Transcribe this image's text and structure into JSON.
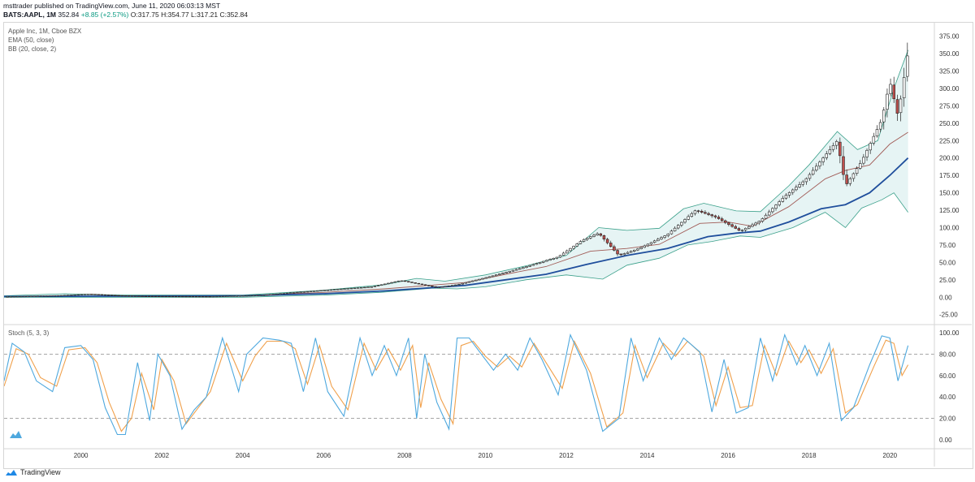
{
  "header": {
    "publisher_line": "msttrader published on TradingView.com, June 11, 2020 06:03:13 MST",
    "symbol": "BATS:AAPL, 1M",
    "last": "352.84",
    "change": "+8.85 (+2.57%)",
    "open": "O:317.75",
    "high": "H:354.77",
    "low": "L:317.21",
    "close": "C:352.84"
  },
  "legend": {
    "title": "Apple Inc, 1M, Cboe BZX",
    "ema": "EMA (50, close)",
    "bb": "BB (20, close, 2)",
    "stoch": "Stoch (5, 3, 3)"
  },
  "footer": {
    "brand": "TradingView"
  },
  "colors": {
    "up_body": "#ffffff",
    "down_body": "#c0504d",
    "candle_border": "#222222",
    "ema": "#1f4e9c",
    "bb_mid": "#a05a55",
    "bb_band": "#3aa08a",
    "bb_fill": "#e6f4f4",
    "stoch_k": "#4ea8de",
    "stoch_d": "#f0a04b",
    "grid_dash": "#888888"
  },
  "chart_data": [
    {
      "type": "candlestick",
      "title": "Apple Inc, 1M, Cboe BZX",
      "xlim": [
        1998.1,
        2021.1
      ],
      "ylim": [
        -37,
        392
      ],
      "y_ticks": [
        -25,
        0,
        25,
        50,
        75,
        100,
        125,
        150,
        175,
        200,
        225,
        250,
        275,
        300,
        325,
        350,
        375
      ],
      "y_tick_labels": [
        "-25.00",
        "0.00",
        "25.00",
        "50.00",
        "75.00",
        "100.00",
        "125.00",
        "150.00",
        "175.00",
        "200.00",
        "225.00",
        "250.00",
        "275.00",
        "300.00",
        "325.00",
        "350.00",
        "375.00"
      ],
      "x_ticks": [
        2000,
        2002,
        2004,
        2006,
        2008,
        2010,
        2012,
        2014,
        2016,
        2018,
        2020
      ],
      "x_tick_labels": [
        "2000",
        "2002",
        "2004",
        "2006",
        "2008",
        "2010",
        "2012",
        "2014",
        "2016",
        "2018",
        "2020"
      ],
      "price_path": [
        [
          1998.1,
          0.8
        ],
        [
          1999.5,
          2.5
        ],
        [
          2000.2,
          4.5
        ],
        [
          2000.9,
          2.5
        ],
        [
          2001.5,
          1.6
        ],
        [
          2003.2,
          1.1
        ],
        [
          2004.5,
          3
        ],
        [
          2005.3,
          7
        ],
        [
          2006.0,
          10
        ],
        [
          2007.2,
          15
        ],
        [
          2007.9,
          24
        ],
        [
          2008.8,
          14
        ],
        [
          2009.3,
          18
        ],
        [
          2010.0,
          28
        ],
        [
          2010.9,
          42
        ],
        [
          2011.8,
          58
        ],
        [
          2012.4,
          82
        ],
        [
          2012.8,
          92
        ],
        [
          2013.3,
          60
        ],
        [
          2013.8,
          70
        ],
        [
          2014.5,
          90
        ],
        [
          2015.2,
          125
        ],
        [
          2015.7,
          115
        ],
        [
          2016.3,
          95
        ],
        [
          2016.8,
          110
        ],
        [
          2017.4,
          145
        ],
        [
          2017.9,
          168
        ],
        [
          2018.7,
          225
        ],
        [
          2018.9,
          160
        ],
        [
          2019.3,
          195
        ],
        [
          2019.8,
          255
        ],
        [
          2020.0,
          310
        ],
        [
          2020.2,
          260
        ],
        [
          2020.45,
          352.84
        ]
      ],
      "ema50": [
        [
          1998.1,
          1
        ],
        [
          2004,
          2
        ],
        [
          2006,
          5
        ],
        [
          2007.5,
          9
        ],
        [
          2008.5,
          13
        ],
        [
          2009.5,
          17
        ],
        [
          2010.5,
          25
        ],
        [
          2011.5,
          33
        ],
        [
          2012.5,
          47
        ],
        [
          2013.5,
          60
        ],
        [
          2014.5,
          70
        ],
        [
          2015.5,
          87
        ],
        [
          2016.2,
          92
        ],
        [
          2016.8,
          95
        ],
        [
          2017.5,
          108
        ],
        [
          2018.3,
          127
        ],
        [
          2018.9,
          133
        ],
        [
          2019.5,
          150
        ],
        [
          2020.0,
          175
        ],
        [
          2020.45,
          200
        ]
      ],
      "bb_middle": [
        [
          1998.1,
          1
        ],
        [
          2004,
          2
        ],
        [
          2006,
          7
        ],
        [
          2007.5,
          12
        ],
        [
          2008.6,
          17
        ],
        [
          2009.5,
          21
        ],
        [
          2010.5,
          33
        ],
        [
          2011.5,
          44
        ],
        [
          2012.6,
          66
        ],
        [
          2013.5,
          70
        ],
        [
          2014.3,
          76
        ],
        [
          2015.3,
          106
        ],
        [
          2016.0,
          108
        ],
        [
          2016.6,
          102
        ],
        [
          2017.5,
          130
        ],
        [
          2018.4,
          170
        ],
        [
          2018.9,
          182
        ],
        [
          2019.5,
          190
        ],
        [
          2020.0,
          220
        ],
        [
          2020.45,
          237
        ]
      ],
      "bb_upper": [
        [
          1998.1,
          2
        ],
        [
          1999.6,
          5
        ],
        [
          2001,
          3
        ],
        [
          2004,
          3
        ],
        [
          2006,
          10
        ],
        [
          2007.5,
          18
        ],
        [
          2008.3,
          27
        ],
        [
          2009.0,
          23
        ],
        [
          2010.0,
          32
        ],
        [
          2011.0,
          45
        ],
        [
          2012.0,
          60
        ],
        [
          2012.8,
          100
        ],
        [
          2013.5,
          96
        ],
        [
          2014.3,
          99
        ],
        [
          2014.9,
          127
        ],
        [
          2015.4,
          135
        ],
        [
          2016.2,
          124
        ],
        [
          2016.8,
          123
        ],
        [
          2017.5,
          160
        ],
        [
          2018.0,
          190
        ],
        [
          2018.7,
          238
        ],
        [
          2019.2,
          212
        ],
        [
          2019.7,
          225
        ],
        [
          2020.1,
          300
        ],
        [
          2020.45,
          355
        ]
      ],
      "bb_lower": [
        [
          1998.1,
          0
        ],
        [
          2004,
          0
        ],
        [
          2006,
          3
        ],
        [
          2007.4,
          7
        ],
        [
          2008.7,
          13
        ],
        [
          2009.3,
          12
        ],
        [
          2010.0,
          15
        ],
        [
          2011.0,
          25
        ],
        [
          2012.0,
          32
        ],
        [
          2012.9,
          26
        ],
        [
          2013.5,
          46
        ],
        [
          2014.3,
          56
        ],
        [
          2015.0,
          75
        ],
        [
          2015.6,
          80
        ],
        [
          2016.3,
          88
        ],
        [
          2016.8,
          86
        ],
        [
          2017.6,
          100
        ],
        [
          2018.4,
          122
        ],
        [
          2018.9,
          100
        ],
        [
          2019.3,
          128
        ],
        [
          2019.8,
          140
        ],
        [
          2020.1,
          150
        ],
        [
          2020.45,
          122
        ]
      ]
    },
    {
      "type": "line",
      "title": "Stoch (5, 3, 3)",
      "ylim": [
        -6,
        106
      ],
      "y_ticks": [
        0,
        20,
        40,
        60,
        80,
        100
      ],
      "y_tick_labels": [
        "0.00",
        "20.00",
        "40.00",
        "60.00",
        "80.00",
        "100.00"
      ],
      "bands": [
        20,
        80
      ],
      "k_path": [
        [
          1998.1,
          55
        ],
        [
          1998.3,
          90
        ],
        [
          1998.6,
          82
        ],
        [
          1998.9,
          55
        ],
        [
          1999.3,
          45
        ],
        [
          1999.6,
          86
        ],
        [
          2000.0,
          88
        ],
        [
          2000.3,
          75
        ],
        [
          2000.6,
          30
        ],
        [
          2000.9,
          5
        ],
        [
          2001.1,
          5
        ],
        [
          2001.4,
          72
        ],
        [
          2001.7,
          18
        ],
        [
          2001.9,
          80
        ],
        [
          2002.2,
          60
        ],
        [
          2002.5,
          10
        ],
        [
          2002.8,
          28
        ],
        [
          2003.1,
          40
        ],
        [
          2003.5,
          95
        ],
        [
          2003.9,
          45
        ],
        [
          2004.1,
          80
        ],
        [
          2004.5,
          95
        ],
        [
          2004.9,
          93
        ],
        [
          2005.2,
          90
        ],
        [
          2005.5,
          45
        ],
        [
          2005.8,
          95
        ],
        [
          2006.1,
          45
        ],
        [
          2006.5,
          22
        ],
        [
          2006.9,
          95
        ],
        [
          2007.2,
          60
        ],
        [
          2007.5,
          88
        ],
        [
          2007.8,
          60
        ],
        [
          2008.1,
          95
        ],
        [
          2008.3,
          20
        ],
        [
          2008.5,
          80
        ],
        [
          2008.8,
          35
        ],
        [
          2009.1,
          10
        ],
        [
          2009.3,
          95
        ],
        [
          2009.6,
          95
        ],
        [
          2009.9,
          80
        ],
        [
          2010.2,
          65
        ],
        [
          2010.5,
          80
        ],
        [
          2010.8,
          65
        ],
        [
          2011.1,
          95
        ],
        [
          2011.4,
          75
        ],
        [
          2011.8,
          42
        ],
        [
          2012.1,
          98
        ],
        [
          2012.5,
          65
        ],
        [
          2012.9,
          8
        ],
        [
          2013.3,
          20
        ],
        [
          2013.6,
          95
        ],
        [
          2013.9,
          55
        ],
        [
          2014.3,
          95
        ],
        [
          2014.6,
          75
        ],
        [
          2014.9,
          95
        ],
        [
          2015.3,
          82
        ],
        [
          2015.6,
          26
        ],
        [
          2015.9,
          75
        ],
        [
          2016.2,
          25
        ],
        [
          2016.5,
          30
        ],
        [
          2016.8,
          95
        ],
        [
          2017.1,
          55
        ],
        [
          2017.4,
          98
        ],
        [
          2017.7,
          70
        ],
        [
          2017.9,
          88
        ],
        [
          2018.2,
          60
        ],
        [
          2018.5,
          90
        ],
        [
          2018.8,
          18
        ],
        [
          2019.1,
          30
        ],
        [
          2019.5,
          70
        ],
        [
          2019.8,
          97
        ],
        [
          2020.0,
          95
        ],
        [
          2020.2,
          55
        ],
        [
          2020.45,
          88
        ]
      ],
      "d_path": [
        [
          1998.1,
          50
        ],
        [
          1998.4,
          85
        ],
        [
          1998.7,
          80
        ],
        [
          1999.0,
          58
        ],
        [
          1999.4,
          50
        ],
        [
          1999.7,
          84
        ],
        [
          2000.1,
          86
        ],
        [
          2000.4,
          72
        ],
        [
          2000.7,
          35
        ],
        [
          2001.0,
          8
        ],
        [
          2001.25,
          20
        ],
        [
          2001.5,
          62
        ],
        [
          2001.8,
          28
        ],
        [
          2002.0,
          75
        ],
        [
          2002.3,
          55
        ],
        [
          2002.6,
          15
        ],
        [
          2002.9,
          30
        ],
        [
          2003.2,
          45
        ],
        [
          2003.6,
          90
        ],
        [
          2004.0,
          55
        ],
        [
          2004.3,
          78
        ],
        [
          2004.6,
          92
        ],
        [
          2005.0,
          92
        ],
        [
          2005.3,
          85
        ],
        [
          2005.6,
          52
        ],
        [
          2005.9,
          88
        ],
        [
          2006.2,
          50
        ],
        [
          2006.6,
          28
        ],
        [
          2007.0,
          90
        ],
        [
          2007.3,
          65
        ],
        [
          2007.6,
          85
        ],
        [
          2007.9,
          65
        ],
        [
          2008.2,
          88
        ],
        [
          2008.4,
          30
        ],
        [
          2008.6,
          72
        ],
        [
          2008.9,
          38
        ],
        [
          2009.2,
          15
        ],
        [
          2009.4,
          88
        ],
        [
          2009.7,
          92
        ],
        [
          2010.0,
          78
        ],
        [
          2010.3,
          68
        ],
        [
          2010.6,
          78
        ],
        [
          2010.9,
          68
        ],
        [
          2011.2,
          90
        ],
        [
          2011.5,
          72
        ],
        [
          2011.9,
          48
        ],
        [
          2012.2,
          92
        ],
        [
          2012.6,
          62
        ],
        [
          2013.0,
          12
        ],
        [
          2013.4,
          25
        ],
        [
          2013.7,
          88
        ],
        [
          2014.0,
          58
        ],
        [
          2014.4,
          90
        ],
        [
          2014.7,
          78
        ],
        [
          2015.0,
          92
        ],
        [
          2015.4,
          78
        ],
        [
          2015.7,
          32
        ],
        [
          2016.0,
          68
        ],
        [
          2016.3,
          30
        ],
        [
          2016.6,
          32
        ],
        [
          2016.9,
          88
        ],
        [
          2017.2,
          60
        ],
        [
          2017.5,
          92
        ],
        [
          2017.8,
          72
        ],
        [
          2018.0,
          84
        ],
        [
          2018.3,
          62
        ],
        [
          2018.6,
          85
        ],
        [
          2018.9,
          25
        ],
        [
          2019.2,
          33
        ],
        [
          2019.6,
          68
        ],
        [
          2019.9,
          93
        ],
        [
          2020.1,
          90
        ],
        [
          2020.3,
          60
        ],
        [
          2020.45,
          70
        ]
      ]
    }
  ]
}
